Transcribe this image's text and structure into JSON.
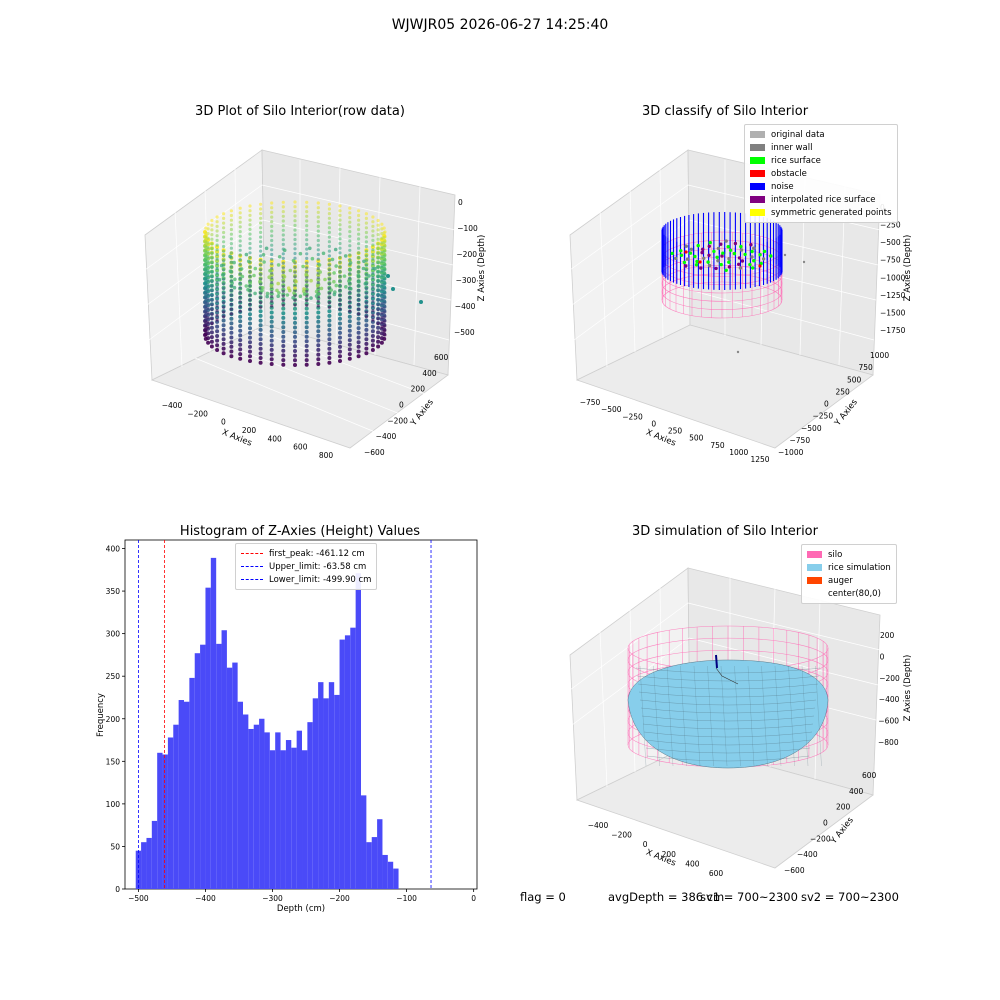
{
  "page": {
    "title": "WJWJR05 2026-06-27 14:25:40"
  },
  "panels": {
    "raw": {
      "title": "3D Plot of Silo Interior(row data)",
      "x_ticks": [
        "−400",
        "−200",
        "0",
        "200",
        "400",
        "600",
        "800"
      ],
      "y_ticks": [
        "−600",
        "−400",
        "−200",
        "0",
        "200",
        "400",
        "600"
      ],
      "z_ticks": [
        "0",
        "−100",
        "−200",
        "−300",
        "−400",
        "−500"
      ],
      "xlabel": "X Axies",
      "ylabel": "Y Axies",
      "zlabel": "Z Axies (Depth)"
    },
    "classify": {
      "title": "3D classify of Silo Interior",
      "x_ticks": [
        "−750",
        "−500",
        "−250",
        "0",
        "250",
        "500",
        "750",
        "1000",
        "1250"
      ],
      "y_ticks": [
        "−1000",
        "−750",
        "−500",
        "−250",
        "0",
        "250",
        "500",
        "750",
        "1000"
      ],
      "z_ticks": [
        "0",
        "−250",
        "−500",
        "−750",
        "−1000",
        "−1250",
        "−1500",
        "−1750"
      ],
      "xlabel": "X Axies",
      "ylabel": "Y Axies",
      "zlabel": "Z Axies (Depth)",
      "legend": [
        {
          "label": "original data",
          "color": "#b0b0b0"
        },
        {
          "label": "inner wall",
          "color": "#808080"
        },
        {
          "label": "rice surface",
          "color": "#00ff00"
        },
        {
          "label": "obstacle",
          "color": "#ff0000"
        },
        {
          "label": "noise",
          "color": "#0000ff"
        },
        {
          "label": "interpolated rice surface",
          "color": "#800080"
        },
        {
          "label": "symmetric generated points",
          "color": "#ffff00"
        }
      ]
    },
    "histogram": {
      "title": "Histogram of Z-Axies (Height) Values",
      "xlabel": "Depth (cm)",
      "ylabel": "Frequency",
      "x_ticks": [
        "−500",
        "−400",
        "−300",
        "−200",
        "−100",
        "0"
      ],
      "y_ticks": [
        "0",
        "50",
        "100",
        "150",
        "200",
        "250",
        "300",
        "350",
        "400"
      ],
      "legend": [
        {
          "label": "first_peak: -461.12 cm",
          "color": "#ff0000"
        },
        {
          "label": "Upper_limit: -63.58 cm",
          "color": "#0000ff"
        },
        {
          "label": "Lower_limit: -499.90 cm",
          "color": "#0000ff"
        }
      ]
    },
    "simulation": {
      "title": "3D simulation of Silo Interior",
      "x_ticks": [
        "−400",
        "−200",
        "0",
        "200",
        "400",
        "600"
      ],
      "y_ticks": [
        "−600",
        "−400",
        "−200",
        "0",
        "200",
        "400",
        "600"
      ],
      "z_ticks": [
        "200",
        "0",
        "−200",
        "−400",
        "−600",
        "−800"
      ],
      "xlabel": "X Axies",
      "ylabel": "Y Axies",
      "zlabel": "Z Axies (Depth)",
      "legend": [
        {
          "label": "silo",
          "color": "#ff69b4"
        },
        {
          "label": "rice simulation",
          "color": "#87ceeb"
        },
        {
          "label": "auger",
          "color": "#ff4500"
        },
        {
          "label": "center(80,0)",
          "color": ""
        }
      ]
    }
  },
  "footer": {
    "flag": "flag = 0",
    "avg": "avgDepth = 386 cm",
    "sv1": "sv1 = 700~2300",
    "sv2": "sv2 = 700~2300"
  },
  "chart_data": {
    "type": "bar",
    "title": "Histogram of Z-Axies (Height) Values",
    "xlabel": "Depth (cm)",
    "ylabel": "Frequency",
    "xlim": [
      -520,
      5
    ],
    "ylim": [
      0,
      410
    ],
    "bin_start": -504,
    "bin_width": 8,
    "values": [
      45,
      55,
      60,
      80,
      160,
      158,
      178,
      193,
      222,
      220,
      248,
      277,
      287,
      354,
      389,
      288,
      304,
      260,
      266,
      220,
      205,
      188,
      193,
      200,
      184,
      163,
      184,
      163,
      175,
      166,
      186,
      163,
      196,
      224,
      243,
      224,
      243,
      228,
      293,
      298,
      307,
      371,
      110,
      55,
      61,
      82,
      40,
      32,
      24
    ],
    "vlines": [
      {
        "name": "first_peak",
        "x": -461.12,
        "color": "#ff0000"
      },
      {
        "name": "Upper_limit",
        "x": -63.58,
        "color": "#0000ff"
      },
      {
        "name": "Lower_limit",
        "x": -499.9,
        "color": "#0000ff"
      }
    ],
    "bar_color": "#4a4af8"
  }
}
